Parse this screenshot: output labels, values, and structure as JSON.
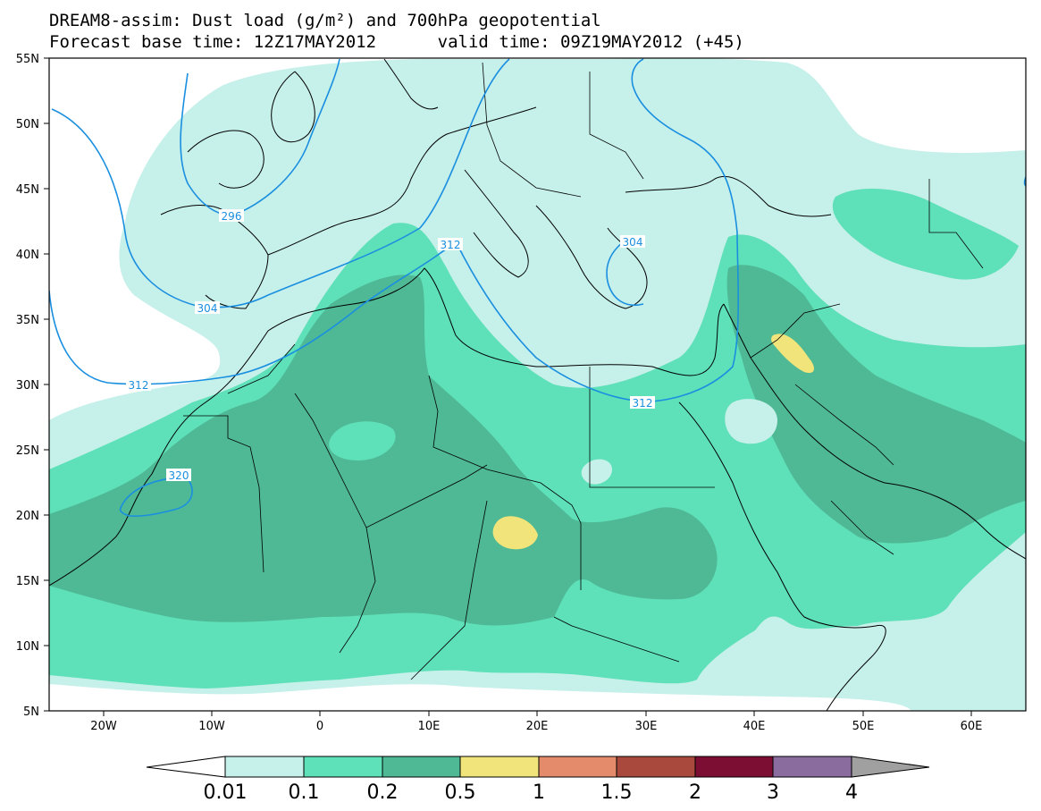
{
  "title": {
    "line1": "DREAM8-assim: Dust load (g/m²) and 700hPa geopotential",
    "line2": "Forecast base time: 12Z17MAY2012      valid time: 09Z19MAY2012 (+45)"
  },
  "map": {
    "lon_range": [
      -25,
      65
    ],
    "lat_range": [
      5,
      55
    ],
    "lat_labels": [
      "55N",
      "50N",
      "45N",
      "40N",
      "35N",
      "30N",
      "25N",
      "20N",
      "15N",
      "10N",
      "5N"
    ],
    "lon_labels": [
      "20W",
      "10W",
      "0",
      "10E",
      "20E",
      "30E",
      "40E",
      "50E",
      "60E"
    ],
    "contour_labels": [
      "296",
      "304",
      "312",
      "312",
      "312",
      "320",
      "304"
    ],
    "contour_color": "#1a8fe0",
    "land_edge_color": "#000000"
  },
  "colorbar": {
    "labels": [
      "0.01",
      "0.1",
      "0.2",
      "0.5",
      "1",
      "1.5",
      "2",
      "3",
      "4"
    ],
    "colors": [
      "#ffffff",
      "#c6f0ea",
      "#5ee0b8",
      "#4fb894",
      "#f0e47a",
      "#e38b6a",
      "#a9483d",
      "#7c0e33",
      "#8a6d9e",
      "#a0a0a0"
    ]
  }
}
